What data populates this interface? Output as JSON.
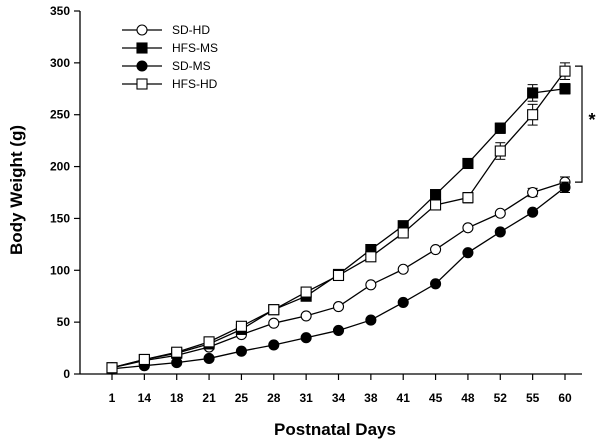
{
  "chart_data": {
    "type": "line",
    "title": "",
    "xlabel": "Postnatal Days",
    "ylabel": "Body Weight (g)",
    "ylim": [
      0,
      350
    ],
    "yticks": [
      0,
      50,
      100,
      150,
      200,
      250,
      300,
      350
    ],
    "categories": [
      "1",
      "14",
      "18",
      "21",
      "25",
      "28",
      "31",
      "34",
      "38",
      "41",
      "45",
      "48",
      "52",
      "55",
      "60"
    ],
    "grid": false,
    "legend_position": "top-left",
    "series": [
      {
        "name": "SD-HD",
        "marker": "circle",
        "fill": "open",
        "values": [
          6,
          13,
          18,
          26,
          38,
          49,
          56,
          65,
          86,
          101,
          120,
          141,
          155,
          175,
          185
        ],
        "errors": [
          0,
          0,
          0,
          0,
          0,
          0,
          0,
          0,
          0,
          0,
          0,
          0,
          0,
          4,
          5
        ]
      },
      {
        "name": "HFS-MS",
        "marker": "square",
        "fill": "filled",
        "values": [
          6,
          14,
          20,
          29,
          43,
          62,
          75,
          96,
          120,
          143,
          173,
          203,
          237,
          271,
          275
        ],
        "errors": [
          0,
          0,
          0,
          0,
          0,
          0,
          0,
          0,
          0,
          0,
          0,
          0,
          5,
          8,
          5
        ]
      },
      {
        "name": "SD-MS",
        "marker": "circle",
        "fill": "filled",
        "values": [
          5,
          8,
          11,
          15,
          22,
          28,
          35,
          42,
          52,
          69,
          87,
          117,
          137,
          156,
          180
        ],
        "errors": [
          0,
          0,
          0,
          0,
          0,
          0,
          0,
          0,
          0,
          0,
          0,
          0,
          0,
          0,
          5
        ]
      },
      {
        "name": "HFS-HD",
        "marker": "square",
        "fill": "open",
        "values": [
          6,
          14,
          21,
          31,
          46,
          62,
          79,
          95,
          113,
          136,
          163,
          170,
          215,
          250,
          292
        ],
        "errors": [
          0,
          0,
          0,
          0,
          0,
          0,
          0,
          0,
          0,
          0,
          0,
          5,
          8,
          10,
          8
        ]
      }
    ],
    "annotation": {
      "text": "*",
      "range_low": 185,
      "range_high": 292
    }
  }
}
